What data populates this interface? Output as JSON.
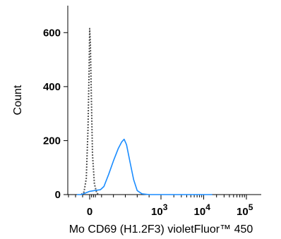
{
  "chart_data": {
    "type": "line",
    "title": "",
    "xlabel": "Mo CD69 (H1.2F3) violetFluor™ 450",
    "ylabel": "Count",
    "x_scale": "biexponential",
    "ylim": [
      0,
      700
    ],
    "y_ticks": [
      0,
      200,
      400,
      600
    ],
    "y_tick_labels": [
      "0",
      "200",
      "400",
      "600"
    ],
    "x_ticks": [
      {
        "base": "0",
        "exp": ""
      },
      {
        "base": "10",
        "exp": "3"
      },
      {
        "base": "10",
        "exp": "4"
      },
      {
        "base": "10",
        "exp": "5"
      }
    ],
    "series": [
      {
        "style": "dotted",
        "color": "#555555",
        "points": [
          [
            -0.3,
            0
          ],
          [
            -0.2,
            10
          ],
          [
            -0.12,
            60
          ],
          [
            -0.06,
            240
          ],
          [
            -0.02,
            460
          ],
          [
            0.0,
            615
          ],
          [
            0.03,
            560
          ],
          [
            0.07,
            360
          ],
          [
            0.12,
            150
          ],
          [
            0.2,
            40
          ],
          [
            0.3,
            5
          ],
          [
            0.4,
            0
          ]
        ]
      },
      {
        "style": "solid",
        "color": "#1a8cff",
        "points": [
          [
            -0.45,
            0
          ],
          [
            -0.3,
            0
          ],
          [
            -0.15,
            6
          ],
          [
            0.0,
            12
          ],
          [
            0.2,
            15
          ],
          [
            0.45,
            18
          ],
          [
            0.6,
            30
          ],
          [
            0.8,
            75
          ],
          [
            1.0,
            125
          ],
          [
            1.2,
            170
          ],
          [
            1.35,
            195
          ],
          [
            1.45,
            205
          ],
          [
            1.55,
            185
          ],
          [
            1.7,
            120
          ],
          [
            1.85,
            55
          ],
          [
            2.0,
            15
          ],
          [
            2.2,
            3
          ],
          [
            2.5,
            0
          ],
          [
            3.0,
            0
          ],
          [
            4.2,
            0
          ]
        ]
      }
    ]
  }
}
